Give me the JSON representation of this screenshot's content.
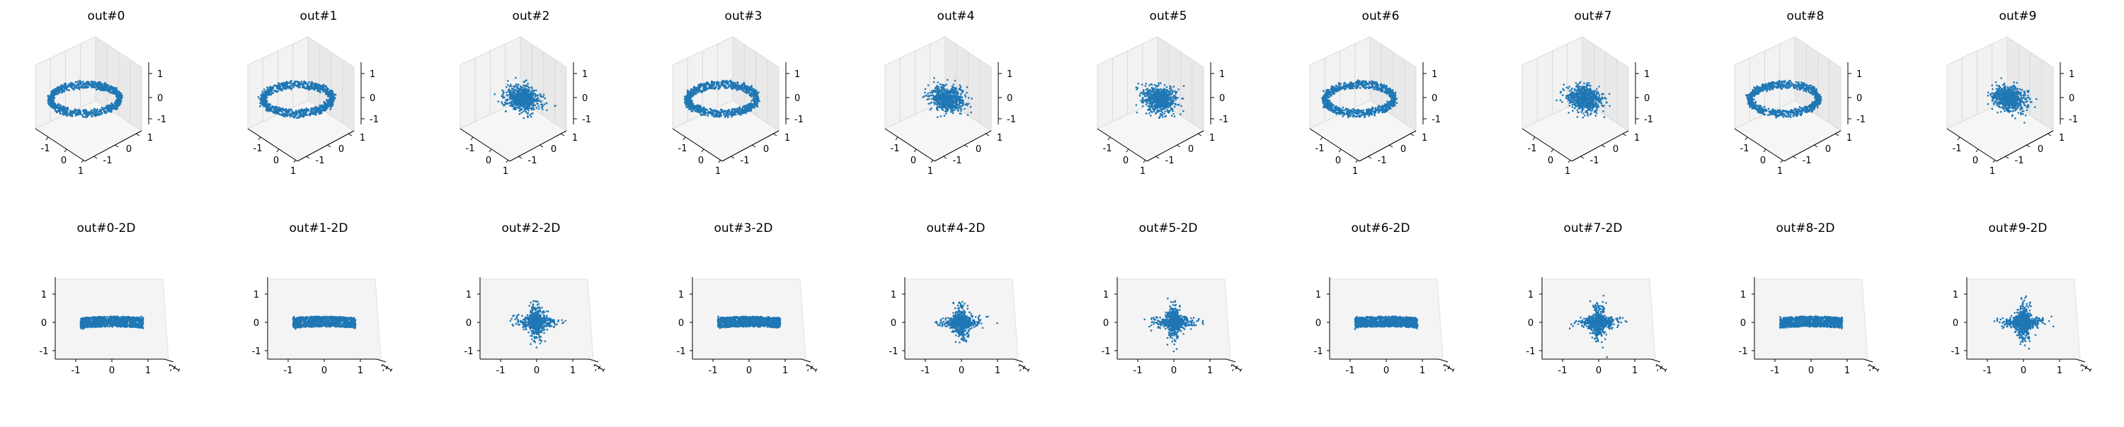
{
  "figure": {
    "colors": {
      "points": "#1f77b4",
      "pane": "#f2f2f2",
      "pane_dark": "#e9e9e9",
      "axis": "#000000",
      "grid": "#d8d8d8"
    }
  },
  "chart_data": [
    {
      "type": "scatter",
      "dim": "3d",
      "title": "out#0",
      "shape": "ring",
      "tick_labels": [
        "-1",
        "0",
        "1"
      ],
      "xlim": [
        -1.5,
        1.5
      ],
      "ylim": [
        -1.5,
        1.5
      ],
      "zlim": [
        -1.5,
        1.5
      ]
    },
    {
      "type": "scatter",
      "dim": "3d",
      "title": "out#1",
      "shape": "ring",
      "tick_labels": [
        "-1",
        "0",
        "1"
      ],
      "xlim": [
        -1.5,
        1.5
      ],
      "ylim": [
        -1.5,
        1.5
      ],
      "zlim": [
        -1.5,
        1.5
      ]
    },
    {
      "type": "scatter",
      "dim": "3d",
      "title": "out#2",
      "shape": "blob",
      "tick_labels": [
        "-1",
        "0",
        "1"
      ],
      "xlim": [
        -1.5,
        1.5
      ],
      "ylim": [
        -1.5,
        1.5
      ],
      "zlim": [
        -1.5,
        1.5
      ]
    },
    {
      "type": "scatter",
      "dim": "3d",
      "title": "out#3",
      "shape": "ring",
      "tick_labels": [
        "-1",
        "0",
        "1"
      ],
      "xlim": [
        -1.5,
        1.5
      ],
      "ylim": [
        -1.5,
        1.5
      ],
      "zlim": [
        -1.5,
        1.5
      ]
    },
    {
      "type": "scatter",
      "dim": "3d",
      "title": "out#4",
      "shape": "blob",
      "tick_labels": [
        "-1",
        "0",
        "1"
      ],
      "xlim": [
        -1.5,
        1.5
      ],
      "ylim": [
        -1.5,
        1.5
      ],
      "zlim": [
        -1.5,
        1.5
      ]
    },
    {
      "type": "scatter",
      "dim": "3d",
      "title": "out#5",
      "shape": "blob",
      "tick_labels": [
        "-1",
        "0",
        "1"
      ],
      "xlim": [
        -1.5,
        1.5
      ],
      "ylim": [
        -1.5,
        1.5
      ],
      "zlim": [
        -1.5,
        1.5
      ]
    },
    {
      "type": "scatter",
      "dim": "3d",
      "title": "out#6",
      "shape": "ring",
      "tick_labels": [
        "-1",
        "0",
        "1"
      ],
      "xlim": [
        -1.5,
        1.5
      ],
      "ylim": [
        -1.5,
        1.5
      ],
      "zlim": [
        -1.5,
        1.5
      ]
    },
    {
      "type": "scatter",
      "dim": "3d",
      "title": "out#7",
      "shape": "blob",
      "tick_labels": [
        "-1",
        "0",
        "1"
      ],
      "xlim": [
        -1.5,
        1.5
      ],
      "ylim": [
        -1.5,
        1.5
      ],
      "zlim": [
        -1.5,
        1.5
      ]
    },
    {
      "type": "scatter",
      "dim": "3d",
      "title": "out#8",
      "shape": "ring",
      "tick_labels": [
        "-1",
        "0",
        "1"
      ],
      "xlim": [
        -1.5,
        1.5
      ],
      "ylim": [
        -1.5,
        1.5
      ],
      "zlim": [
        -1.5,
        1.5
      ]
    },
    {
      "type": "scatter",
      "dim": "3d",
      "title": "out#9",
      "shape": "blob",
      "tick_labels": [
        "-1",
        "0",
        "1"
      ],
      "xlim": [
        -1.5,
        1.5
      ],
      "ylim": [
        -1.5,
        1.5
      ],
      "zlim": [
        -1.5,
        1.5
      ]
    },
    {
      "type": "scatter",
      "dim": "2d-projection",
      "title": "out#0-2D",
      "shape": "band",
      "tick_labels": [
        "-1",
        "0",
        "1"
      ],
      "xlim": [
        -1.5,
        1.5
      ],
      "ylim": [
        -1.5,
        1.5
      ]
    },
    {
      "type": "scatter",
      "dim": "2d-projection",
      "title": "out#1-2D",
      "shape": "band",
      "tick_labels": [
        "-1",
        "0",
        "1"
      ],
      "xlim": [
        -1.5,
        1.5
      ],
      "ylim": [
        -1.5,
        1.5
      ]
    },
    {
      "type": "scatter",
      "dim": "2d-projection",
      "title": "out#2-2D",
      "shape": "cross",
      "tick_labels": [
        "-1",
        "0",
        "1"
      ],
      "xlim": [
        -1.5,
        1.5
      ],
      "ylim": [
        -1.5,
        1.5
      ]
    },
    {
      "type": "scatter",
      "dim": "2d-projection",
      "title": "out#3-2D",
      "shape": "band",
      "tick_labels": [
        "-1",
        "0",
        "1"
      ],
      "xlim": [
        -1.5,
        1.5
      ],
      "ylim": [
        -1.5,
        1.5
      ]
    },
    {
      "type": "scatter",
      "dim": "2d-projection",
      "title": "out#4-2D",
      "shape": "cross",
      "tick_labels": [
        "-1",
        "0",
        "1"
      ],
      "xlim": [
        -1.5,
        1.5
      ],
      "ylim": [
        -1.5,
        1.5
      ]
    },
    {
      "type": "scatter",
      "dim": "2d-projection",
      "title": "out#5-2D",
      "shape": "cross",
      "tick_labels": [
        "-1",
        "0",
        "1"
      ],
      "xlim": [
        -1.5,
        1.5
      ],
      "ylim": [
        -1.5,
        1.5
      ]
    },
    {
      "type": "scatter",
      "dim": "2d-projection",
      "title": "out#6-2D",
      "shape": "band",
      "tick_labels": [
        "-1",
        "0",
        "1"
      ],
      "xlim": [
        -1.5,
        1.5
      ],
      "ylim": [
        -1.5,
        1.5
      ]
    },
    {
      "type": "scatter",
      "dim": "2d-projection",
      "title": "out#7-2D",
      "shape": "cross",
      "tick_labels": [
        "-1",
        "0",
        "1"
      ],
      "xlim": [
        -1.5,
        1.5
      ],
      "ylim": [
        -1.5,
        1.5
      ]
    },
    {
      "type": "scatter",
      "dim": "2d-projection",
      "title": "out#8-2D",
      "shape": "band",
      "tick_labels": [
        "-1",
        "0",
        "1"
      ],
      "xlim": [
        -1.5,
        1.5
      ],
      "ylim": [
        -1.5,
        1.5
      ]
    },
    {
      "type": "scatter",
      "dim": "2d-projection",
      "title": "out#9-2D",
      "shape": "cross",
      "tick_labels": [
        "-1",
        "0",
        "1"
      ],
      "xlim": [
        -1.5,
        1.5
      ],
      "ylim": [
        -1.5,
        1.5
      ]
    }
  ]
}
